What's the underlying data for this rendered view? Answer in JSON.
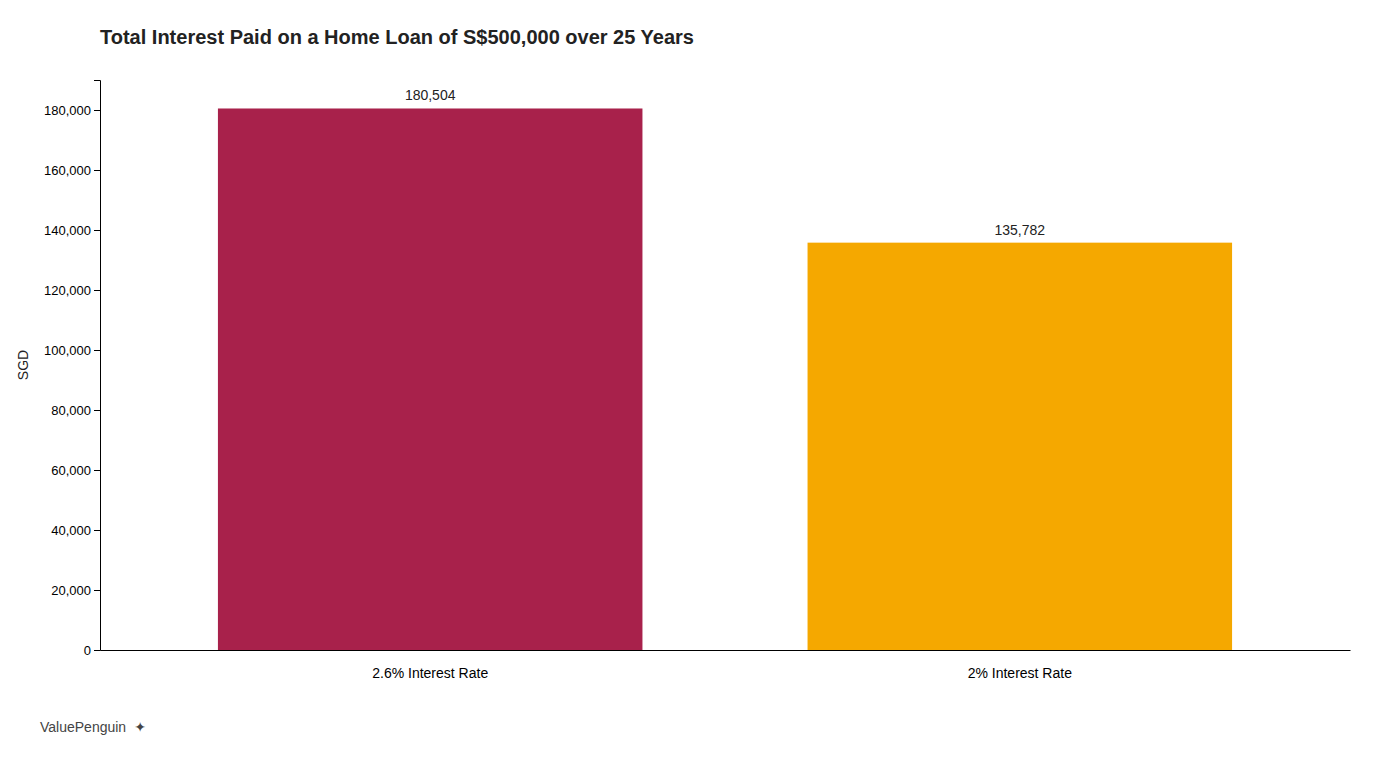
{
  "chart_data": {
    "type": "bar",
    "title": "Total Interest Paid on a Home Loan of S$500,000 over 25 Years",
    "categories": [
      "2.6% Interest Rate",
      "2% Interest Rate"
    ],
    "values": [
      180504,
      135782
    ],
    "value_labels": [
      "180,504",
      "135,782"
    ],
    "data_labels": true,
    "colors": [
      "#A8214B",
      "#F5A800"
    ],
    "ylabel": "SGD",
    "ylim": [
      0,
      190000
    ],
    "yticks": [
      0,
      {
        "value": 20000,
        "label": "20,000"
      },
      {
        "value": 40000,
        "label": "40,000"
      },
      {
        "value": 60000,
        "label": "60,000"
      },
      {
        "value": 80000,
        "label": "80,000"
      },
      {
        "value": 100000,
        "label": "100,000"
      },
      {
        "value": 120000,
        "label": "120,000"
      },
      {
        "value": 140000,
        "label": "140,000"
      },
      {
        "value": 160000,
        "label": "160,000"
      },
      {
        "value": 180000,
        "label": "180,000"
      }
    ],
    "grid": false,
    "annotations": [
      "ValuePenguin",
      "✦"
    ]
  }
}
